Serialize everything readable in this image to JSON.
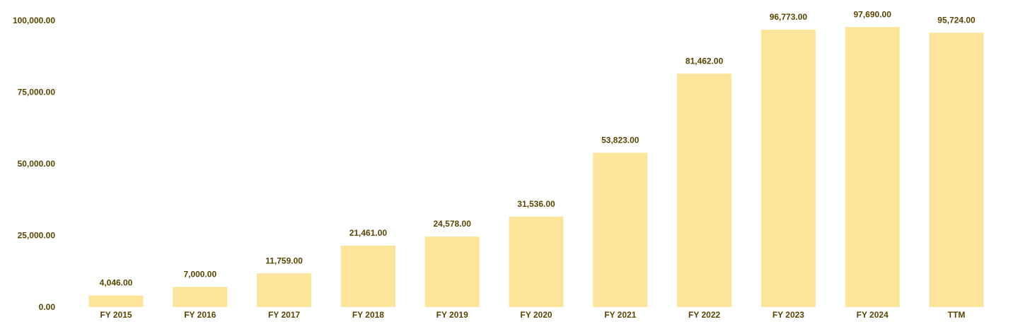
{
  "chart_data": {
    "type": "bar",
    "categories": [
      "FY 2015",
      "FY 2016",
      "FY 2017",
      "FY 2018",
      "FY 2019",
      "FY 2020",
      "FY 2021",
      "FY 2022",
      "FY 2023",
      "FY 2024",
      "TTM"
    ],
    "values": [
      4046,
      7000,
      11759,
      21461,
      24578,
      31536,
      53823,
      81462,
      96773,
      97690,
      95724
    ],
    "value_labels": [
      "4,046.00",
      "7,000.00",
      "11,759.00",
      "21,461.00",
      "24,578.00",
      "31,536.00",
      "53,823.00",
      "81,462.00",
      "96,773.00",
      "97,690.00",
      "95,724.00"
    ],
    "y_ticks": [
      0,
      25000,
      50000,
      75000,
      100000
    ],
    "y_tick_labels": [
      "0.00",
      "25,000.00",
      "50,000.00",
      "75,000.00",
      "100,000.00"
    ],
    "ylim": [
      0,
      100000
    ],
    "grid": false,
    "legend": "none",
    "colors": {
      "bar": "#fde49b",
      "text": "#5a4400"
    }
  }
}
